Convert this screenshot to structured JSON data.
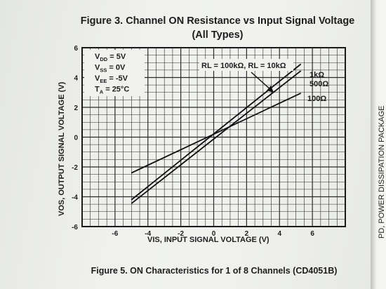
{
  "figure_title_line1": "Figure 3. Channel ON Resistance vs Input Signal Voltage",
  "figure_title_line2": "(All Types)",
  "caption": "Figure 5. ON Characteristics for 1 of 8 Channels (CD4051B)",
  "side_label": "PD, POWER DISSIPATION PACKAGE",
  "chart_data": {
    "type": "line",
    "xlabel": "VIS, INPUT SIGNAL VOLTAGE (V)",
    "ylabel": "VOS, OUTPUT SIGNAL VOLTAGE (V)",
    "xlim": [
      -8,
      8
    ],
    "ylim": [
      -6,
      6
    ],
    "x_ticks": [
      -6,
      -4,
      -2,
      0,
      2,
      4,
      6
    ],
    "y_ticks": [
      -6,
      -4,
      -2,
      0,
      2,
      4,
      6
    ],
    "grid": true,
    "series": [
      {
        "name": "1kΩ",
        "x": [
          -5,
          5.3
        ],
        "y": [
          -4.2,
          4.9
        ]
      },
      {
        "name": "500Ω",
        "x": [
          -5,
          5.3
        ],
        "y": [
          -4.45,
          4.45
        ]
      },
      {
        "name": "100Ω",
        "x": [
          -5,
          5.3
        ],
        "y": [
          -2.4,
          2.95
        ]
      }
    ],
    "conditions": [
      {
        "var": "V",
        "sub": "DD",
        "rest": " = 5V"
      },
      {
        "var": "V",
        "sub": "SS",
        "rest": " = 0V"
      },
      {
        "var": "V",
        "sub": "EE",
        "rest": " = -5V"
      },
      {
        "var": "T",
        "sub": "A",
        "rest": " = 25°C"
      }
    ],
    "annotation": "RL = 100kΩ, RL = 10kΩ"
  }
}
